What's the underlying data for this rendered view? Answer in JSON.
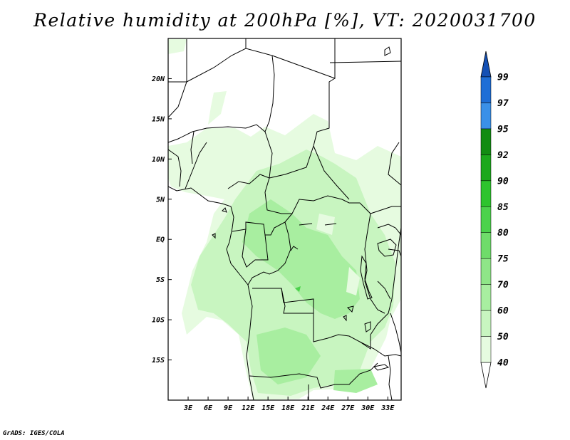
{
  "title": "Relative humidity at 200hPa [%], VT: 2020031700",
  "footer": "GrADS: IGES/COLA",
  "map": {
    "lon_range": [
      0,
      35
    ],
    "lat_range": [
      -20,
      25
    ],
    "x_ticks": [
      "3E",
      "6E",
      "9E",
      "12E",
      "15E",
      "18E",
      "21E",
      "24E",
      "27E",
      "30E",
      "33E"
    ],
    "y_ticks": [
      "20N",
      "15N",
      "10N",
      "5N",
      "EQ",
      "5S",
      "10S",
      "15S"
    ]
  },
  "colorbar": {
    "levels": [
      "40",
      "50",
      "60",
      "70",
      "75",
      "80",
      "85",
      "90",
      "92",
      "95",
      "97",
      "99"
    ],
    "colors": [
      "#ffffff",
      "#e6fbe0",
      "#c8f5c0",
      "#a8eea0",
      "#8fe688",
      "#6fdc6a",
      "#4cd24c",
      "#2ec42e",
      "#1ca81c",
      "#128c12",
      "#3a90e8",
      "#1e6ed6",
      "#1450b4"
    ]
  }
}
